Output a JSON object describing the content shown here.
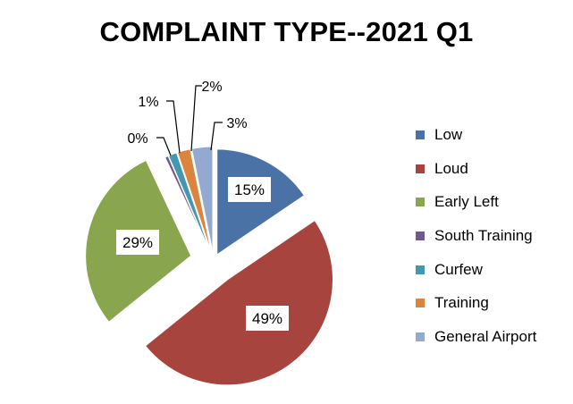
{
  "chart_data": {
    "type": "pie",
    "title": "COMPLAINT TYPE--2021 Q1",
    "slices": [
      {
        "name": "Low",
        "percent": 15,
        "value": 15.5,
        "label": "15%",
        "color": "#4a72a6"
      },
      {
        "name": "Loud",
        "percent": 49,
        "value": 48.7,
        "label": "49%",
        "color": "#a8443e"
      },
      {
        "name": "Early Left",
        "percent": 29,
        "value": 28.8,
        "label": "29%",
        "color": "#89a54e"
      },
      {
        "name": "South Training",
        "percent": 0,
        "value": 0.5,
        "label": "0%",
        "color": "#71588f"
      },
      {
        "name": "Curfew",
        "percent": 1,
        "value": 1.3,
        "label": "1%",
        "color": "#4198af"
      },
      {
        "name": "Training",
        "percent": 2,
        "value": 2.0,
        "label": "2%",
        "color": "#db843d"
      },
      {
        "name": "General Airport",
        "percent": 3,
        "value": 3.2,
        "label": "3%",
        "color": "#93a9cf"
      }
    ],
    "legend_position": "right"
  }
}
